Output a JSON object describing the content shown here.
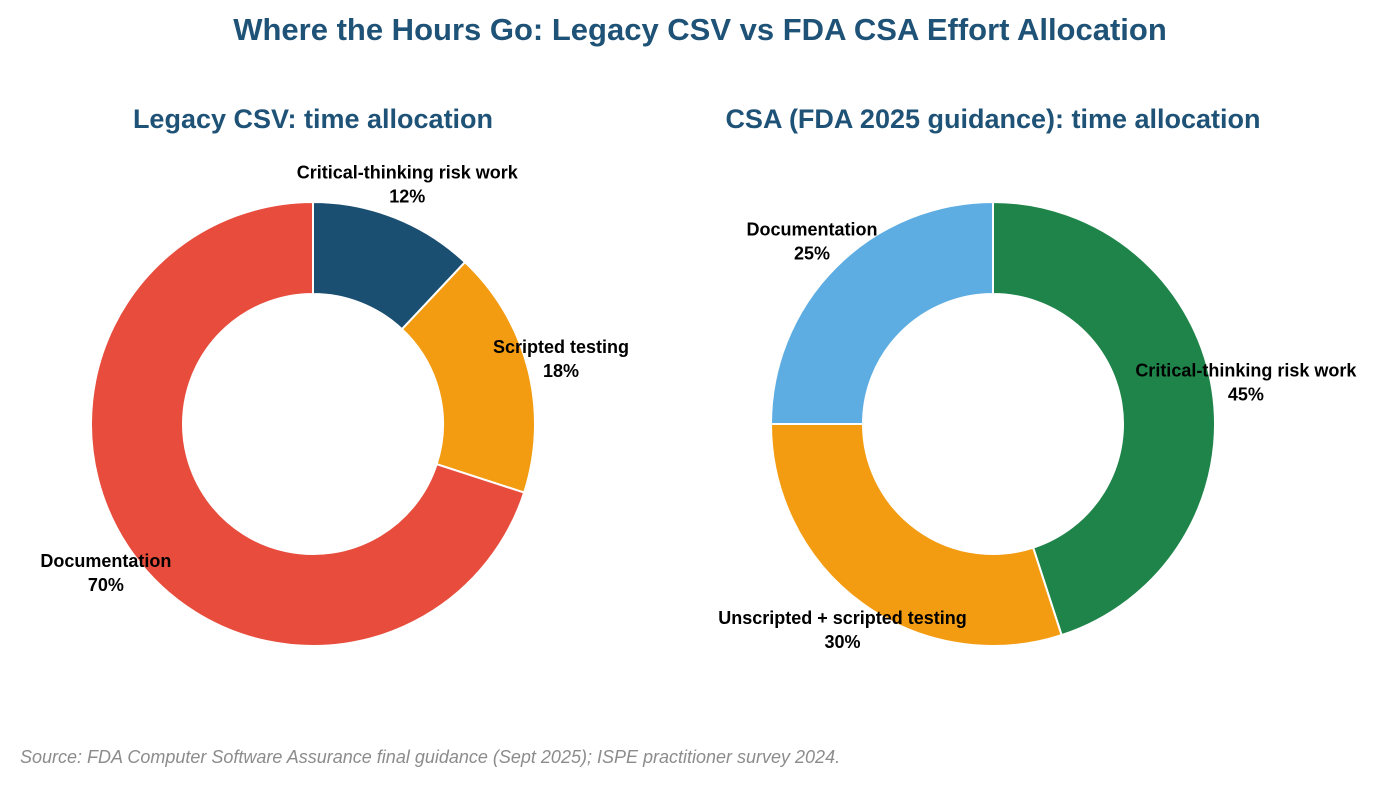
{
  "title": "Where the Hours Go: Legacy CSV vs FDA CSA Effort Allocation",
  "source": "Source: FDA Computer Software Assurance final guidance (Sept 2025); ISPE practitioner survey 2024.",
  "chart_data": [
    {
      "type": "donut",
      "title": "Legacy CSV: time allocation",
      "categories": [
        "Critical-thinking risk work",
        "Scripted testing",
        "Documentation"
      ],
      "values": [
        12,
        18,
        70
      ],
      "value_labels": [
        "12%",
        "18%",
        "70%"
      ],
      "colors": [
        "#1b4f72",
        "#f39c12",
        "#e74c3c"
      ]
    },
    {
      "type": "donut",
      "title": "CSA (FDA 2025 guidance): time allocation",
      "categories": [
        "Critical-thinking risk work",
        "Unscripted + scripted testing",
        "Documentation"
      ],
      "values": [
        45,
        30,
        25
      ],
      "value_labels": [
        "45%",
        "30%",
        "25%"
      ],
      "colors": [
        "#1e8449",
        "#f39c12",
        "#5dade2"
      ]
    }
  ]
}
